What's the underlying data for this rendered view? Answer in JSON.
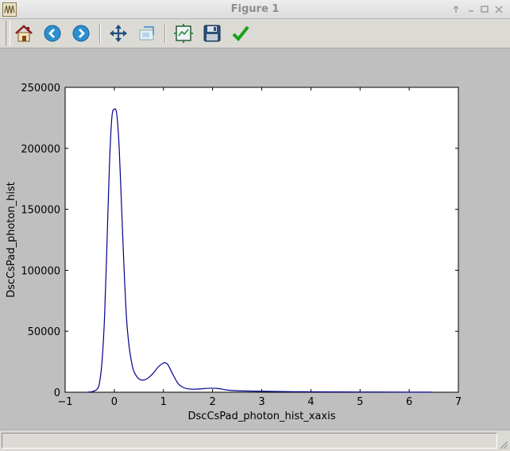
{
  "window": {
    "title": "Figure 1",
    "controls": [
      "up-arrow",
      "minimize",
      "maximize",
      "close"
    ]
  },
  "toolbar": {
    "buttons": [
      {
        "name": "home",
        "icon": "home-icon"
      },
      {
        "name": "back",
        "icon": "back-arrow-icon"
      },
      {
        "name": "forward",
        "icon": "forward-arrow-icon"
      },
      {
        "name": "pan",
        "icon": "pan-move-icon"
      },
      {
        "name": "zoom",
        "icon": "zoom-rect-icon"
      },
      {
        "name": "subplots",
        "icon": "subplots-config-icon"
      },
      {
        "name": "save",
        "icon": "save-floppy-icon"
      },
      {
        "name": "edit",
        "icon": "checkmark-icon"
      }
    ]
  },
  "status": {
    "text": ""
  },
  "chart_data": {
    "type": "line",
    "title": "",
    "xlabel": "DscCsPad_photon_hist_xaxis",
    "ylabel": "DscCsPad_photon_hist",
    "xlim": [
      -1,
      7
    ],
    "ylim": [
      0,
      250000
    ],
    "xticks": [
      -1,
      0,
      1,
      2,
      3,
      4,
      5,
      6,
      7
    ],
    "xtick_labels": [
      "−1",
      "0",
      "1",
      "2",
      "3",
      "4",
      "5",
      "6",
      "7"
    ],
    "yticks": [
      0,
      50000,
      100000,
      150000,
      200000,
      250000
    ],
    "ytick_labels": [
      "0",
      "50000",
      "100000",
      "150000",
      "200000",
      "250000"
    ],
    "grid": false,
    "legend": "none",
    "color": "#00008b",
    "series": [
      {
        "x": [
          -0.55,
          -0.45,
          -0.35,
          -0.3,
          -0.25,
          -0.2,
          -0.15,
          -0.1,
          -0.05,
          0.0,
          0.05,
          0.1,
          0.15,
          0.2,
          0.25,
          0.3,
          0.35,
          0.4,
          0.5,
          0.6,
          0.7,
          0.8,
          0.9,
          1.0,
          1.05,
          1.1,
          1.2,
          1.3,
          1.4,
          1.5,
          1.6,
          1.7,
          1.8,
          1.9,
          2.0,
          2.1,
          2.2,
          2.3,
          2.5,
          3.0,
          3.5,
          4.0,
          5.0,
          6.0,
          6.45
        ],
        "y": [
          0,
          500,
          2500,
          8000,
          25000,
          60000,
          120000,
          185000,
          225000,
          232000,
          228000,
          200000,
          150000,
          100000,
          60000,
          38000,
          25000,
          17000,
          11000,
          10000,
          12000,
          16000,
          21000,
          24000,
          24000,
          22000,
          14000,
          7000,
          4000,
          2800,
          2500,
          2600,
          2900,
          3200,
          3300,
          3100,
          2500,
          1800,
          1200,
          800,
          500,
          350,
          200,
          100,
          80
        ]
      }
    ]
  }
}
